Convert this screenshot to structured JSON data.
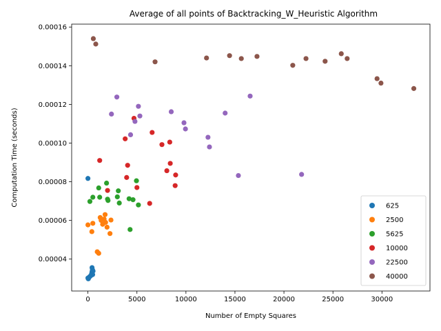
{
  "chart_data": {
    "type": "scatter",
    "title": "Average of all points of Backtracking_W_Heuristic Algorithm",
    "xlabel": "Number of Empty Squares",
    "ylabel": "Computation Time (seconds)",
    "xlim": [
      -1660,
      34900
    ],
    "ylim": [
      2.35e-05,
      0.0001615
    ],
    "xticks": [
      0,
      5000,
      10000,
      15000,
      20000,
      25000,
      30000
    ],
    "xtick_labels": [
      "0",
      "5000",
      "10000",
      "15000",
      "20000",
      "25000",
      "30000"
    ],
    "yticks": [
      4e-05,
      6e-05,
      8e-05,
      0.0001,
      0.00012,
      0.00014,
      0.00016
    ],
    "ytick_labels": [
      "0.00004",
      "0.00006",
      "0.00008",
      "0.00010",
      "0.00012",
      "0.00014",
      "0.00016"
    ],
    "grid": false,
    "legend_position": "bottom-right",
    "series": [
      {
        "name": "625",
        "color": "#1f77b4",
        "points": [
          {
            "x": 0,
            "y": 8.17e-05
          },
          {
            "x": 0,
            "y": 3.02e-05
          },
          {
            "x": 40,
            "y": 2.98e-05
          },
          {
            "x": 100,
            "y": 3.05e-05
          },
          {
            "x": 200,
            "y": 3.1e-05
          },
          {
            "x": 300,
            "y": 3.15e-05
          },
          {
            "x": 380,
            "y": 3.25e-05
          },
          {
            "x": 420,
            "y": 3.35e-05
          },
          {
            "x": 460,
            "y": 3.45e-05
          },
          {
            "x": 420,
            "y": 3.56e-05
          },
          {
            "x": 480,
            "y": 3.2e-05
          },
          {
            "x": 520,
            "y": 3.38e-05
          }
        ]
      },
      {
        "name": "2500",
        "color": "#ff7f0e",
        "points": [
          {
            "x": 0,
            "y": 5.77e-05
          },
          {
            "x": 400,
            "y": 5.42e-05
          },
          {
            "x": 500,
            "y": 5.85e-05
          },
          {
            "x": 950,
            "y": 4.38e-05
          },
          {
            "x": 1100,
            "y": 4.3e-05
          },
          {
            "x": 1250,
            "y": 6.15e-05
          },
          {
            "x": 1350,
            "y": 6e-05
          },
          {
            "x": 1500,
            "y": 5.8e-05
          },
          {
            "x": 1650,
            "y": 6.07e-05
          },
          {
            "x": 1750,
            "y": 6.3e-05
          },
          {
            "x": 1800,
            "y": 5.9e-05
          },
          {
            "x": 1950,
            "y": 5.65e-05
          },
          {
            "x": 2250,
            "y": 5.32e-05
          },
          {
            "x": 2350,
            "y": 6.02e-05
          }
        ]
      },
      {
        "name": "5625",
        "color": "#2ca02c",
        "points": [
          {
            "x": 200,
            "y": 6.98e-05
          },
          {
            "x": 500,
            "y": 7.2e-05
          },
          {
            "x": 1100,
            "y": 7.68e-05
          },
          {
            "x": 1200,
            "y": 7.2e-05
          },
          {
            "x": 1900,
            "y": 7.93e-05
          },
          {
            "x": 2000,
            "y": 7.1e-05
          },
          {
            "x": 2050,
            "y": 7.03e-05
          },
          {
            "x": 3000,
            "y": 7.22e-05
          },
          {
            "x": 3100,
            "y": 7.53e-05
          },
          {
            "x": 3200,
            "y": 6.9e-05
          },
          {
            "x": 4200,
            "y": 7.12e-05
          },
          {
            "x": 4300,
            "y": 5.53e-05
          },
          {
            "x": 4600,
            "y": 7.07e-05
          },
          {
            "x": 4950,
            "y": 8.05e-05
          },
          {
            "x": 5150,
            "y": 6.8e-05
          }
        ]
      },
      {
        "name": "10000",
        "color": "#d62728",
        "points": [
          {
            "x": 1200,
            "y": 9.1e-05
          },
          {
            "x": 2000,
            "y": 7.55e-05
          },
          {
            "x": 3800,
            "y": 0.0001022
          },
          {
            "x": 3950,
            "y": 8.22e-05
          },
          {
            "x": 4050,
            "y": 8.85e-05
          },
          {
            "x": 4700,
            "y": 0.0001128
          },
          {
            "x": 5000,
            "y": 7.7e-05
          },
          {
            "x": 6300,
            "y": 6.88e-05
          },
          {
            "x": 6550,
            "y": 0.0001055
          },
          {
            "x": 7550,
            "y": 9.92e-05
          },
          {
            "x": 8050,
            "y": 8.57e-05
          },
          {
            "x": 8350,
            "y": 0.0001005
          },
          {
            "x": 8400,
            "y": 8.95e-05
          },
          {
            "x": 8900,
            "y": 7.8e-05
          },
          {
            "x": 8950,
            "y": 8.35e-05
          }
        ]
      },
      {
        "name": "22500",
        "color": "#9467bd",
        "points": [
          {
            "x": 2400,
            "y": 0.000115
          },
          {
            "x": 2950,
            "y": 0.0001238
          },
          {
            "x": 4350,
            "y": 0.0001043
          },
          {
            "x": 4800,
            "y": 0.0001112
          },
          {
            "x": 5150,
            "y": 0.000119
          },
          {
            "x": 5300,
            "y": 0.000114
          },
          {
            "x": 8500,
            "y": 0.0001162
          },
          {
            "x": 9800,
            "y": 0.0001105
          },
          {
            "x": 9950,
            "y": 0.0001073
          },
          {
            "x": 12250,
            "y": 0.000103
          },
          {
            "x": 12400,
            "y": 9.8e-05
          },
          {
            "x": 14000,
            "y": 0.0001155
          },
          {
            "x": 15350,
            "y": 8.32e-05
          },
          {
            "x": 16550,
            "y": 0.0001243
          },
          {
            "x": 21800,
            "y": 8.38e-05
          }
        ]
      },
      {
        "name": "40000",
        "color": "#8c564b",
        "points": [
          {
            "x": 550,
            "y": 0.000154
          },
          {
            "x": 800,
            "y": 0.0001512
          },
          {
            "x": 6850,
            "y": 0.000142
          },
          {
            "x": 12100,
            "y": 0.000144
          },
          {
            "x": 14450,
            "y": 0.0001452
          },
          {
            "x": 15650,
            "y": 0.0001437
          },
          {
            "x": 17250,
            "y": 0.0001448
          },
          {
            "x": 20900,
            "y": 0.0001402
          },
          {
            "x": 22250,
            "y": 0.0001437
          },
          {
            "x": 24200,
            "y": 0.0001423
          },
          {
            "x": 25850,
            "y": 0.0001462
          },
          {
            "x": 26450,
            "y": 0.0001437
          },
          {
            "x": 29500,
            "y": 0.0001333
          },
          {
            "x": 29900,
            "y": 0.000131
          },
          {
            "x": 33250,
            "y": 0.0001282
          }
        ]
      }
    ]
  }
}
